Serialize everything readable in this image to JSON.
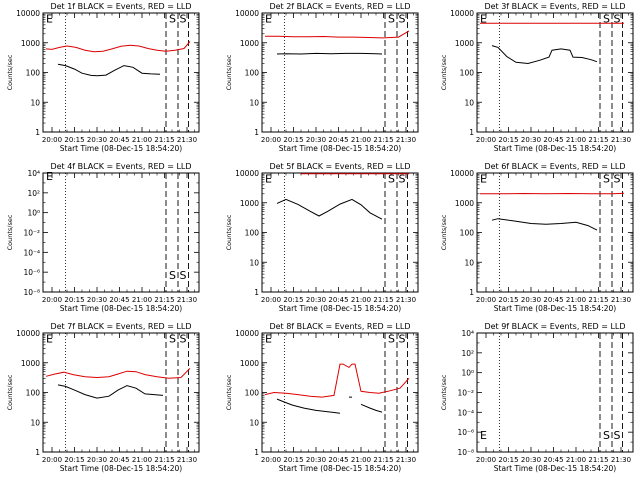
{
  "figure": {
    "xlabel": "Start Time (08-Dec-15 18:54:20)",
    "ylabel": "Counts/sec",
    "x_ticks": [
      "20:00",
      "20:15",
      "20:30",
      "20:45",
      "21:00",
      "21:15",
      "21:30"
    ]
  },
  "chart_data": [
    {
      "type": "line",
      "title": "Det 1f BLACK = Events, RED = LLD",
      "yscale": "log",
      "yticks": [
        "1",
        "10",
        "100",
        "1000",
        "10000"
      ],
      "ylim": [
        1,
        10000
      ],
      "xlim": [
        "19:54",
        "21:38"
      ],
      "markers": {
        "dotted": [
          "20:09"
        ],
        "dashed": [
          "21:16",
          "21:24",
          "21:31"
        ],
        "letters": [
          {
            "text": "E",
            "x": "19:56",
            "y": 6500
          },
          {
            "text": "S",
            "x": "21:18",
            "y": 6500
          },
          {
            "text": "S",
            "x": "21:25",
            "y": 6500
          }
        ]
      },
      "series": [
        {
          "name": "BLACK = Events",
          "color": "#000000",
          "x": [
            "20:04",
            "20:09",
            "20:15",
            "20:20",
            "20:26",
            "20:30",
            "20:36",
            "20:42",
            "20:48",
            "20:54",
            "21:00",
            "21:06",
            "21:12"
          ],
          "y": [
            190,
            170,
            130,
            95,
            80,
            78,
            82,
            120,
            170,
            150,
            95,
            90,
            88
          ]
        },
        {
          "name": "RED = LLD",
          "color": "#dd0000",
          "x": [
            "19:56",
            "20:00",
            "20:05",
            "20:10",
            "20:16",
            "20:22",
            "20:28",
            "20:34",
            "20:40",
            "20:46",
            "20:52",
            "20:58",
            "21:04",
            "21:10",
            "21:16",
            "21:22",
            "21:28",
            "21:32"
          ],
          "y": [
            620,
            600,
            700,
            780,
            700,
            560,
            500,
            520,
            620,
            760,
            820,
            780,
            640,
            560,
            520,
            560,
            640,
            1100
          ]
        }
      ]
    },
    {
      "type": "line",
      "title": "Det 2f BLACK = Events, RED = LLD",
      "yscale": "log",
      "yticks": [
        "1",
        "10",
        "100",
        "1000",
        "10000"
      ],
      "ylim": [
        1,
        10000
      ],
      "xlim": [
        "19:54",
        "21:38"
      ],
      "markers": {
        "dotted": [
          "20:09"
        ],
        "dashed": [
          "21:16",
          "21:24",
          "21:31"
        ],
        "letters": [
          {
            "text": "E",
            "x": "19:56",
            "y": 6500
          },
          {
            "text": "S",
            "x": "21:18",
            "y": 6500
          },
          {
            "text": "S",
            "x": "21:25",
            "y": 6500
          }
        ]
      },
      "series": [
        {
          "name": "BLACK = Events",
          "color": "#000000",
          "x": [
            "20:04",
            "20:10",
            "20:20",
            "20:30",
            "20:40",
            "20:50",
            "21:00",
            "21:10",
            "21:14"
          ],
          "y": [
            420,
            430,
            420,
            440,
            430,
            440,
            440,
            430,
            420
          ]
        },
        {
          "name": "RED = LLD",
          "color": "#dd0000",
          "x": [
            "19:56",
            "20:05",
            "20:15",
            "20:25",
            "20:35",
            "20:45",
            "20:55",
            "21:05",
            "21:15",
            "21:25",
            "21:32"
          ],
          "y": [
            1650,
            1650,
            1600,
            1600,
            1620,
            1550,
            1550,
            1500,
            1450,
            1550,
            2500
          ]
        }
      ]
    },
    {
      "type": "line",
      "title": "Det 3f BLACK = Events, RED = LLD",
      "yscale": "log",
      "yticks": [
        "1",
        "10",
        "100",
        "1000",
        "10000"
      ],
      "ylim": [
        1,
        10000
      ],
      "xlim": [
        "19:54",
        "21:38"
      ],
      "markers": {
        "dotted": [
          "20:09"
        ],
        "dashed": [
          "21:16",
          "21:24",
          "21:31"
        ],
        "letters": [
          {
            "text": "E",
            "x": "19:56",
            "y": 6500
          },
          {
            "text": "S",
            "x": "21:18",
            "y": 6500
          },
          {
            "text": "S",
            "x": "21:25",
            "y": 6500
          }
        ]
      },
      "series": [
        {
          "name": "BLACK = Events",
          "color": "#000000",
          "x": [
            "20:04",
            "20:08",
            "20:14",
            "20:20",
            "20:28",
            "20:36",
            "20:42",
            "20:44",
            "20:50",
            "20:56",
            "20:58",
            "21:04",
            "21:10",
            "21:14"
          ],
          "y": [
            800,
            700,
            340,
            220,
            200,
            260,
            330,
            560,
            620,
            560,
            330,
            320,
            270,
            230
          ]
        },
        {
          "name": "RED = LLD",
          "color": "#dd0000",
          "x": [
            "19:56",
            "20:10",
            "20:25",
            "20:40",
            "20:55",
            "21:10",
            "21:25",
            "21:32"
          ],
          "y": [
            4500,
            4500,
            4500,
            4500,
            4500,
            4500,
            4500,
            4500
          ]
        }
      ]
    },
    {
      "type": "line",
      "title": "Det 4f BLACK = Events, RED = LLD",
      "yscale": "log",
      "yticks": [
        "10⁻⁸",
        "10⁻⁶",
        "10⁻⁴",
        "10⁻²",
        "10⁰",
        "10²",
        "10⁴"
      ],
      "ylim": [
        1e-08,
        10000
      ],
      "xlim": [
        "19:54",
        "21:38"
      ],
      "markers": {
        "dotted": [
          "20:09"
        ],
        "dashed": [
          "21:16",
          "21:24",
          "21:31"
        ],
        "letters": [
          {
            "text": "E",
            "x": "19:56",
            "y": 5000
          },
          {
            "text": "S",
            "x": "21:18",
            "y": 5e-07
          },
          {
            "text": "S",
            "x": "21:25",
            "y": 5e-07
          }
        ]
      },
      "series": []
    },
    {
      "type": "line",
      "title": "Det 5f BLACK = Events, RED = LLD",
      "yscale": "log",
      "yticks": [
        "1",
        "10",
        "100",
        "1000",
        "10000"
      ],
      "ylim": [
        1,
        10000
      ],
      "xlim": [
        "19:54",
        "21:38"
      ],
      "markers": {
        "dotted": [
          "20:09"
        ],
        "dashed": [
          "21:16",
          "21:24",
          "21:31"
        ],
        "letters": [
          {
            "text": "E",
            "x": "19:56",
            "y": 6500
          },
          {
            "text": "S",
            "x": "21:18",
            "y": 6500
          },
          {
            "text": "S",
            "x": "21:25",
            "y": 6500
          }
        ]
      },
      "series": [
        {
          "name": "BLACK = Events",
          "color": "#000000",
          "x": [
            "20:04",
            "20:10",
            "20:18",
            "20:26",
            "20:32",
            "20:38",
            "20:46",
            "20:54",
            "21:00",
            "21:06",
            "21:14"
          ],
          "y": [
            950,
            1300,
            880,
            520,
            360,
            520,
            900,
            1300,
            850,
            460,
            280
          ]
        },
        {
          "name": "RED = LLD",
          "color": "#dd0000",
          "x": [
            "20:20",
            "20:40",
            "21:00",
            "21:15",
            "21:32"
          ],
          "y": [
            9500,
            9500,
            9500,
            9500,
            9500
          ]
        }
      ]
    },
    {
      "type": "line",
      "title": "Det 6f BLACK = Events, RED = LLD",
      "yscale": "log",
      "yticks": [
        "1",
        "10",
        "100",
        "1000",
        "10000"
      ],
      "ylim": [
        1,
        10000
      ],
      "xlim": [
        "19:54",
        "21:38"
      ],
      "markers": {
        "dotted": [
          "20:09"
        ],
        "dashed": [
          "21:16",
          "21:24",
          "21:31"
        ],
        "letters": [
          {
            "text": "E",
            "x": "19:56",
            "y": 6500
          },
          {
            "text": "S",
            "x": "21:18",
            "y": 6500
          },
          {
            "text": "S",
            "x": "21:25",
            "y": 6500
          }
        ]
      },
      "series": [
        {
          "name": "BLACK = Events",
          "color": "#000000",
          "x": [
            "20:04",
            "20:08",
            "20:20",
            "20:30",
            "20:40",
            "20:50",
            "21:00",
            "21:08",
            "21:14"
          ],
          "y": [
            260,
            290,
            240,
            200,
            190,
            200,
            220,
            170,
            120
          ]
        },
        {
          "name": "RED = LLD",
          "color": "#dd0000",
          "x": [
            "19:56",
            "20:10",
            "20:25",
            "20:40",
            "20:55",
            "21:10",
            "21:25",
            "21:32"
          ],
          "y": [
            2000,
            2000,
            2050,
            2000,
            2050,
            2000,
            2000,
            2100
          ]
        }
      ]
    },
    {
      "type": "line",
      "title": "Det 7f BLACK = Events, RED = LLD",
      "yscale": "log",
      "yticks": [
        "1",
        "10",
        "100",
        "1000",
        "10000"
      ],
      "ylim": [
        1,
        10000
      ],
      "xlim": [
        "19:54",
        "21:38"
      ],
      "markers": {
        "dotted": [
          "20:09"
        ],
        "dashed": [
          "21:16",
          "21:24",
          "21:31"
        ],
        "letters": [
          {
            "text": "E",
            "x": "19:56",
            "y": 6500
          },
          {
            "text": "S",
            "x": "21:18",
            "y": 6500
          },
          {
            "text": "S",
            "x": "21:25",
            "y": 6500
          }
        ]
      },
      "series": [
        {
          "name": "BLACK = Events",
          "color": "#000000",
          "x": [
            "20:04",
            "20:09",
            "20:15",
            "20:22",
            "20:30",
            "20:38",
            "20:44",
            "20:50",
            "20:56",
            "21:02",
            "21:08",
            "21:14"
          ],
          "y": [
            180,
            160,
            120,
            85,
            65,
            75,
            120,
            170,
            140,
            90,
            85,
            80
          ]
        },
        {
          "name": "RED = LLD",
          "color": "#dd0000",
          "x": [
            "19:56",
            "20:02",
            "20:08",
            "20:14",
            "20:22",
            "20:30",
            "20:38",
            "20:44",
            "20:50",
            "20:56",
            "21:02",
            "21:10",
            "21:18",
            "21:26",
            "21:32"
          ],
          "y": [
            350,
            420,
            480,
            400,
            340,
            320,
            340,
            420,
            520,
            500,
            400,
            340,
            300,
            320,
            650
          ]
        }
      ]
    },
    {
      "type": "line",
      "title": "Det 8f BLACK = Events, RED = LLD",
      "yscale": "log",
      "yticks": [
        "1",
        "10",
        "100",
        "1000",
        "10000"
      ],
      "ylim": [
        1,
        10000
      ],
      "xlim": [
        "19:54",
        "21:38"
      ],
      "markers": {
        "dotted": [
          "20:09"
        ],
        "dashed": [
          "21:16",
          "21:24",
          "21:31"
        ],
        "letters": [
          {
            "text": "E",
            "x": "19:56",
            "y": 6500
          },
          {
            "text": "S",
            "x": "21:18",
            "y": 6500
          },
          {
            "text": "S",
            "x": "21:25",
            "y": 6500
          }
        ]
      },
      "series": [
        {
          "name": "BLACK = Events",
          "color": "#000000",
          "x": [
            "20:04",
            "20:08",
            "20:14",
            "20:22",
            "20:30",
            "20:40",
            "20:46",
            "20:48",
            "20:52",
            "20:54",
            "20:56",
            "21:00",
            "21:06",
            "21:10",
            "21:14"
          ],
          "y": [
            60,
            50,
            38,
            30,
            25,
            22,
            20,
            null,
            70,
            70,
            null,
            40,
            30,
            25,
            22
          ]
        },
        {
          "name": "RED = LLD",
          "color": "#dd0000",
          "x": [
            "19:56",
            "20:02",
            "20:10",
            "20:18",
            "20:26",
            "20:34",
            "20:42",
            "20:46",
            "20:48",
            "20:52",
            "20:54",
            "20:56",
            "21:00",
            "21:06",
            "21:12",
            "21:18",
            "21:26",
            "21:32"
          ],
          "y": [
            85,
            100,
            95,
            85,
            75,
            70,
            80,
            900,
            900,
            700,
            900,
            900,
            110,
            100,
            95,
            110,
            140,
            300
          ]
        }
      ]
    },
    {
      "type": "line",
      "title": "Det 9f BLACK = Events, RED = LLD",
      "yscale": "log",
      "yticks": [
        "10⁻⁸",
        "10⁻⁶",
        "10⁻⁴",
        "10⁻²",
        "10⁰",
        "10²",
        "10⁴"
      ],
      "ylim": [
        1e-08,
        10000
      ],
      "xlim": [
        "19:54",
        "21:38"
      ],
      "markers": {
        "dotted": [
          "20:09"
        ],
        "dashed": [
          "21:16",
          "21:24",
          "21:31"
        ],
        "letters": [
          {
            "text": "E",
            "x": "19:56",
            "y": 5e-07
          },
          {
            "text": "S",
            "x": "21:18",
            "y": 5e-07
          },
          {
            "text": "S",
            "x": "21:25",
            "y": 5e-07
          }
        ]
      },
      "series": []
    }
  ]
}
